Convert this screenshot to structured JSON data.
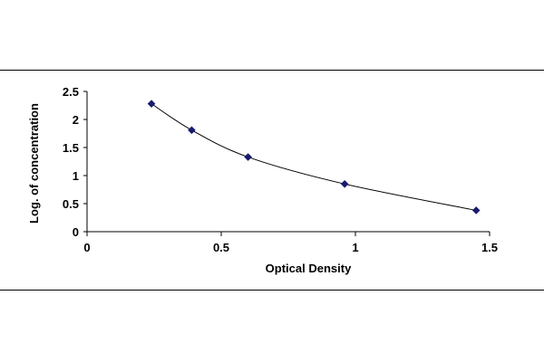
{
  "chart_data": {
    "type": "scatter",
    "xlabel": "Optical Density",
    "ylabel": "Log. of concentration",
    "xlim": [
      0,
      1.5
    ],
    "ylim": [
      0,
      2.5
    ],
    "x_ticks": [
      "0",
      "0.5",
      "1",
      "1.5"
    ],
    "y_ticks": [
      "0",
      "0.5",
      "1",
      "1.5",
      "2",
      "2.5"
    ],
    "grid": false,
    "legend": "none",
    "series": [
      {
        "points": [
          {
            "x": 0.24,
            "y": 2.28
          },
          {
            "x": 0.39,
            "y": 1.81
          },
          {
            "x": 0.6,
            "y": 1.33
          },
          {
            "x": 0.96,
            "y": 0.85
          },
          {
            "x": 1.45,
            "y": 0.38
          }
        ],
        "marker": "diamond",
        "marker_color": "#1a1a6e",
        "curve": "smooth"
      }
    ]
  }
}
